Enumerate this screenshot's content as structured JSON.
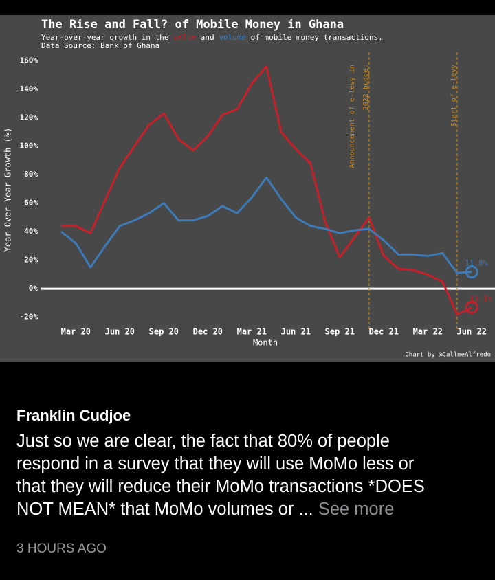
{
  "chart_data": {
    "type": "line",
    "title": "The Rise and Fall? of Mobile Money in Ghana",
    "subtitle": [
      "Year-over-year growth in the ",
      "value",
      " and ",
      "volume",
      " of mobile money transactions."
    ],
    "source": "Data Source: Bank of Ghana",
    "credit": "Chart by @CallmeAlfredo",
    "xlabel": "Month",
    "ylabel": "Year Over Year Growth (%)",
    "categories": [
      null,
      "Mar 20",
      null,
      null,
      "Jun 20",
      null,
      null,
      "Sep 20",
      null,
      null,
      "Dec 20",
      null,
      null,
      "Mar 21",
      null,
      null,
      "Jun 21",
      null,
      null,
      "Sep 21",
      null,
      null,
      "Dec 21",
      null,
      null,
      "Mar 22",
      null,
      null,
      "Jun 22"
    ],
    "series": [
      {
        "name": "value",
        "color": "#c8202a",
        "values": [
          44,
          44,
          39,
          62,
          85,
          100,
          115,
          123,
          105,
          97,
          107,
          122,
          126,
          144,
          156,
          110,
          98,
          88,
          47,
          22,
          36,
          50,
          23,
          14,
          13,
          10,
          5,
          -18,
          -13.1
        ],
        "value_labels": [
          null,
          null,
          null,
          null,
          null,
          null,
          null,
          null,
          null,
          null,
          null,
          null,
          null,
          null,
          null,
          null,
          null,
          null,
          null,
          null,
          null,
          null,
          null,
          null,
          null,
          null,
          null,
          null,
          "-13.1%"
        ]
      },
      {
        "name": "volume",
        "color": "#3d7ab8",
        "values": [
          40,
          32,
          15,
          30,
          44,
          48,
          53,
          60,
          48,
          48,
          51,
          58,
          53,
          64,
          78,
          63,
          50,
          44,
          42,
          39,
          41,
          42,
          34,
          24,
          24,
          23,
          25,
          11,
          11.8
        ],
        "value_labels": [
          null,
          null,
          null,
          null,
          null,
          null,
          null,
          null,
          null,
          null,
          null,
          null,
          null,
          null,
          null,
          null,
          null,
          null,
          null,
          null,
          null,
          null,
          null,
          null,
          null,
          null,
          null,
          null,
          "11.8%"
        ]
      }
    ],
    "annotations": [
      [
        "Announcement of e-levy in",
        "2022 budget"
      ],
      [
        "Start of e-levy"
      ]
    ],
    "ylim": [
      -25,
      164
    ],
    "yticks": [
      {
        "value": -20,
        "label": "-20%"
      },
      {
        "value": 0,
        "label": "0%"
      },
      {
        "value": 20,
        "label": "20%"
      },
      {
        "value": 40,
        "label": "40%"
      },
      {
        "value": 60,
        "label": "60%"
      },
      {
        "value": 80,
        "label": "80%"
      },
      {
        "value": 100,
        "label": "100%"
      },
      {
        "value": 120,
        "label": "120%"
      },
      {
        "value": 140,
        "label": "140%"
      },
      {
        "value": 160,
        "label": "160%"
      }
    ]
  },
  "post": {
    "author": "Franklin Cudjoe",
    "lines": [
      "Just so we are clear, the fact that 80% of people",
      "respond in a survey that they will use MoMo less or",
      "that they will reduce their MoMo transactions *DOES",
      "NOT MEAN* that MoMo volumes or ..."
    ],
    "more": "See more",
    "time": "3 HOURS AGO"
  }
}
